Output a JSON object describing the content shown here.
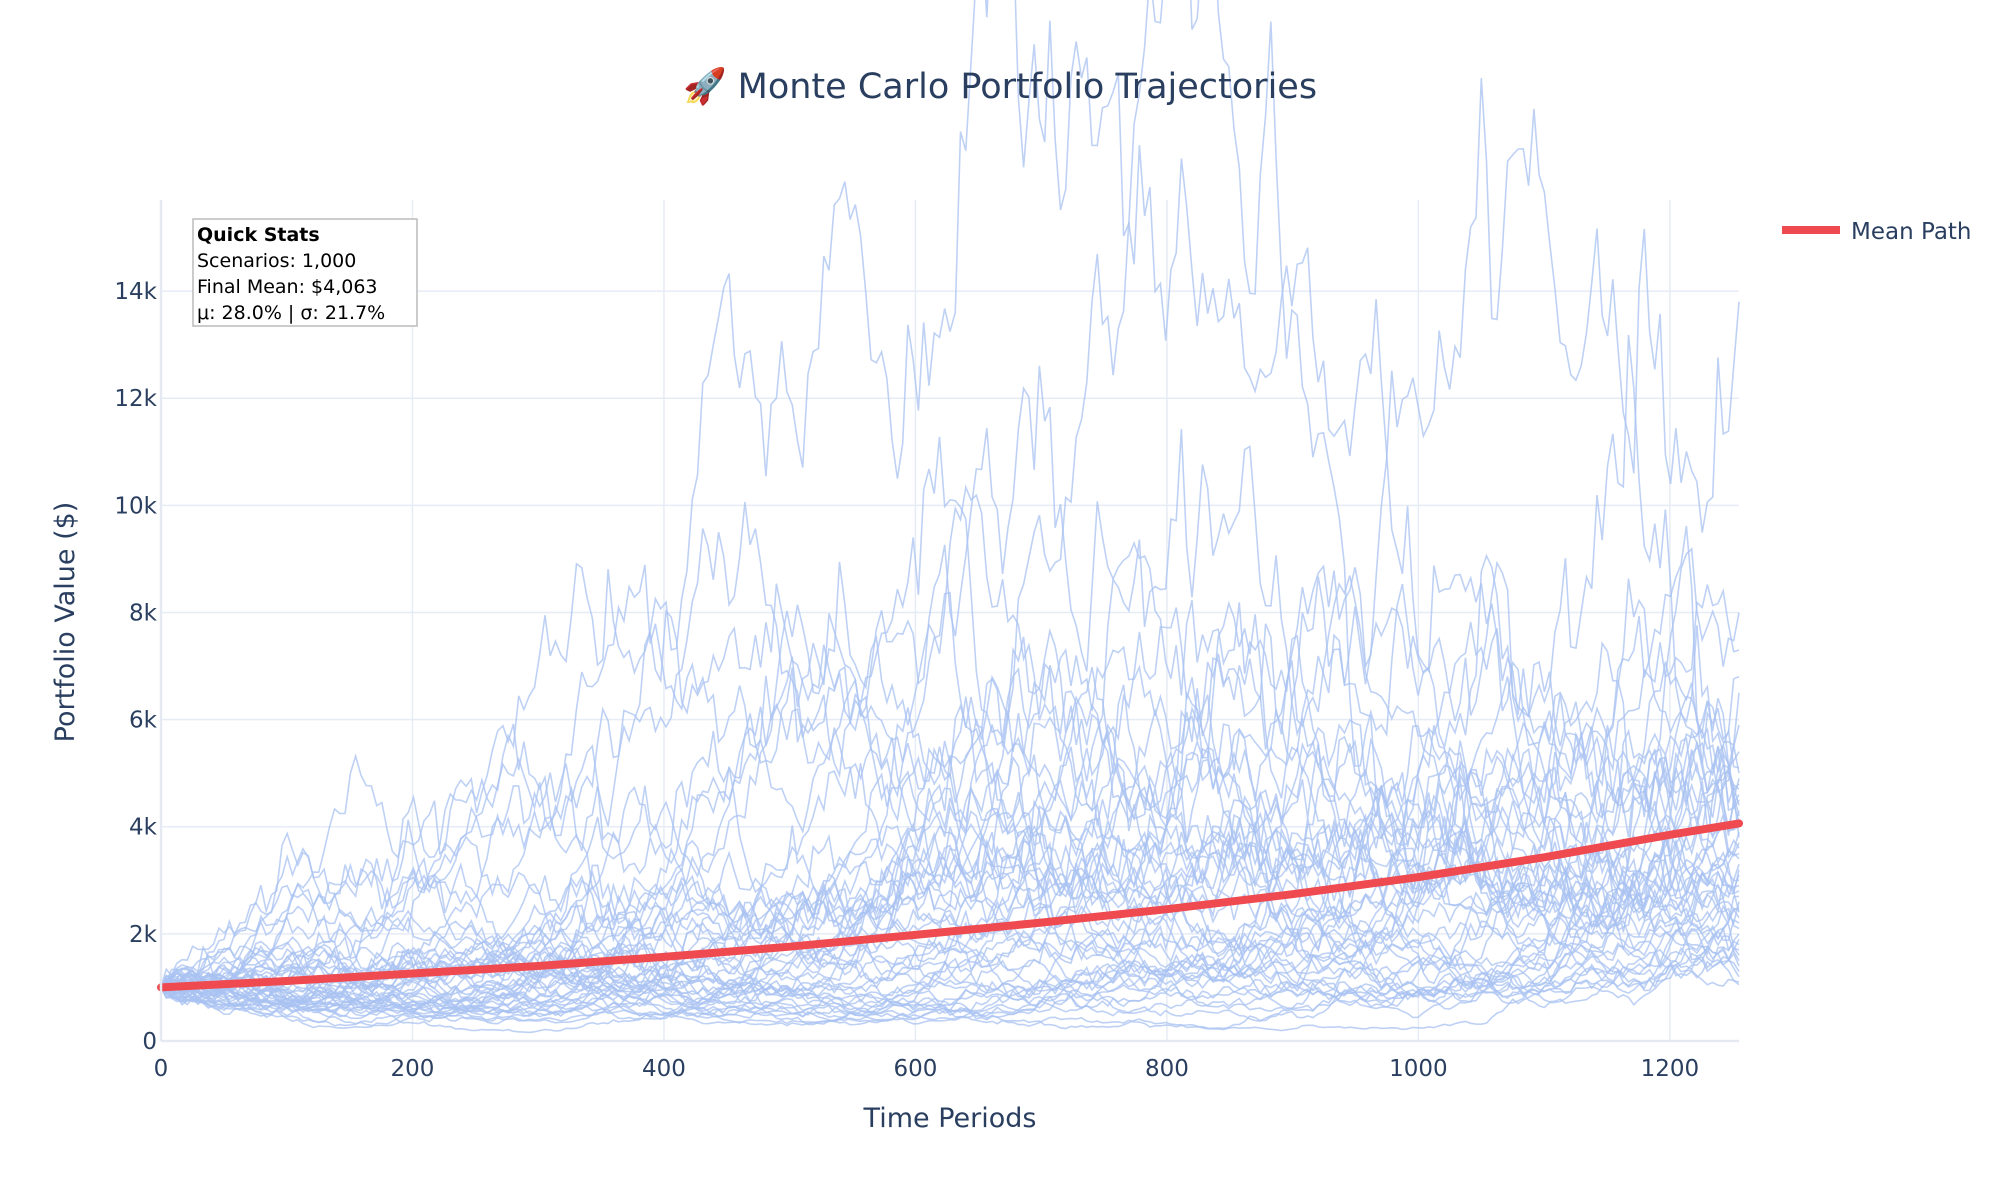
{
  "chart_data": {
    "type": "line",
    "title": "🚀 Monte Carlo Portfolio Trajectories",
    "xlabel": "Time Periods",
    "ylabel": "Portfolio Value ($)",
    "xlim": [
      0,
      1255
    ],
    "ylim": [
      0,
      15700
    ],
    "x_ticks": [
      0,
      200,
      400,
      600,
      800,
      1000,
      1200
    ],
    "x_tick_labels": [
      "0",
      "200",
      "400",
      "600",
      "800",
      "1000",
      "1200"
    ],
    "y_ticks": [
      0,
      2000,
      4000,
      6000,
      8000,
      10000,
      12000,
      14000
    ],
    "y_tick_labels": [
      "0",
      "2k",
      "4k",
      "6k",
      "8k",
      "10k",
      "12k",
      "14k"
    ],
    "grid": true,
    "legend": {
      "position": "top-right",
      "entries": [
        "Mean Path"
      ]
    },
    "colors": {
      "paths": "#a8c1f2",
      "mean": "#ef4a4f",
      "text": "#2a3f5f",
      "grid": "#e6ecf5"
    },
    "series": [
      {
        "name": "Mean Path",
        "x": [
          0,
          100,
          200,
          300,
          400,
          500,
          600,
          700,
          800,
          900,
          1000,
          1100,
          1200,
          1255
        ],
        "values": [
          1000,
          1120,
          1260,
          1400,
          1570,
          1760,
          1980,
          2210,
          2460,
          2740,
          3060,
          3430,
          3850,
          4063
        ]
      }
    ],
    "simulated_paths": {
      "count_shown": 50,
      "start_value": 1000,
      "final_values": [
        13800,
        8000,
        7300,
        6800,
        6500,
        5900,
        5400,
        5100,
        5000,
        4900,
        4800,
        4700,
        4600,
        4500,
        4400,
        4300,
        4200,
        4100,
        4000,
        3900,
        3800,
        3700,
        3600,
        3500,
        3400,
        3300,
        3200,
        3100,
        3000,
        2900,
        2800,
        2700,
        2600,
        2500,
        2400,
        2300,
        2200,
        2100,
        2000,
        1900,
        1800,
        1700,
        1600,
        1500,
        1400,
        1300,
        1200,
        1100,
        1050,
        2450
      ]
    },
    "annotation": {
      "heading": "Quick Stats",
      "lines": [
        "Scenarios: 1,000",
        "Final Mean: $4,063",
        "μ: 28.0% | σ: 21.7%"
      ]
    }
  }
}
